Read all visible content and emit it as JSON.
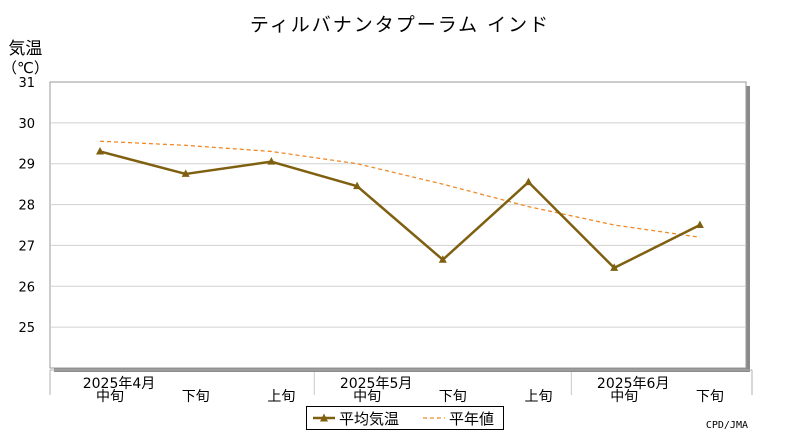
{
  "chart_data": {
    "type": "line",
    "title": "ティルバナンタプーラム インド",
    "ylabel": "気温（℃）",
    "ylabel_line1": "気温",
    "ylabel_line2": "（℃）",
    "ylim": [
      24,
      31
    ],
    "yticks": [
      25,
      26,
      27,
      28,
      29,
      30,
      31
    ],
    "grid": true,
    "legend_position": "bottom-center",
    "x_dekad_labels": [
      "中旬",
      "下旬",
      "上旬",
      "中旬",
      "下旬",
      "上旬",
      "中旬",
      "下旬"
    ],
    "x_month_labels": [
      {
        "label": "2025年4月",
        "index": 0
      },
      {
        "label": "2025年5月",
        "index": 3
      },
      {
        "label": "2025年6月",
        "index": 6
      }
    ],
    "series": [
      {
        "name": "平均気温",
        "color": "#7f6010",
        "style": "solid-triangle",
        "values": [
          29.3,
          28.75,
          29.05,
          28.45,
          26.65,
          28.55,
          26.45,
          27.5
        ]
      },
      {
        "name": "平年値",
        "color": "#f08a28",
        "style": "dashed",
        "values": [
          29.55,
          29.45,
          29.3,
          29.0,
          28.5,
          27.95,
          27.5,
          27.2
        ]
      }
    ]
  },
  "credit": "CPD/JMA"
}
